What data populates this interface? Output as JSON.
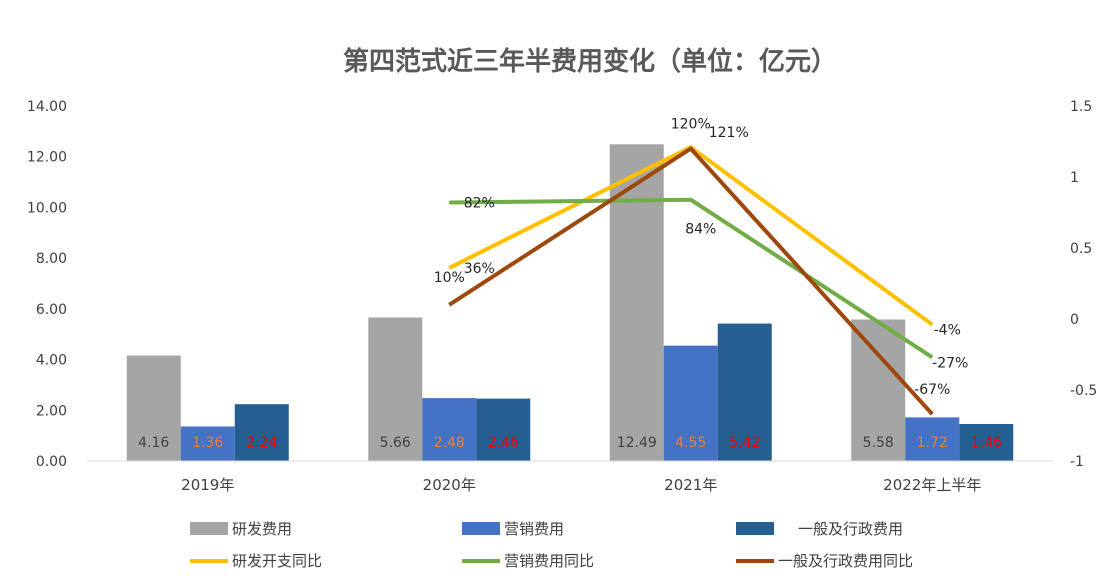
{
  "chart_data": {
    "type": "bar",
    "title": "第四范式近三年半费用变化（单位：亿元）",
    "categories": [
      "2019年",
      "2020年",
      "2021年",
      "2022年上半年"
    ],
    "ylim": [
      0,
      14
    ],
    "y_ticks": [
      "0.00",
      "2.00",
      "4.00",
      "6.00",
      "8.00",
      "10.00",
      "12.00",
      "14.00"
    ],
    "y2lim": [
      -1,
      1.5
    ],
    "y2_ticks": [
      "-1",
      "-0.5",
      "0",
      "0.5",
      "1",
      "1.5"
    ],
    "grid": false,
    "legend_position": "bottom",
    "bar_series": [
      {
        "name": "研发费用",
        "color": "#a5a5a5",
        "label_color": "#404040",
        "values": [
          4.16,
          5.66,
          12.49,
          5.58
        ],
        "labels": [
          "4.16",
          "5.66",
          "12.49",
          "5.58"
        ]
      },
      {
        "name": "营销费用",
        "color": "#4472c4",
        "label_color": "#ed7d31",
        "values": [
          1.36,
          2.48,
          4.55,
          1.72
        ],
        "labels": [
          "1.36",
          "2.48",
          "4.55",
          "1.72"
        ]
      },
      {
        "name": "一般及行政费用",
        "color": "#255e91",
        "label_color": "#ff0000",
        "values": [
          2.24,
          2.46,
          5.42,
          1.46
        ],
        "labels": [
          "2.24",
          "2.46",
          "5.42",
          "1.46"
        ]
      }
    ],
    "line_series": [
      {
        "name": "研发开支同比",
        "color": "#ffc000",
        "values": [
          null,
          0.36,
          1.21,
          -0.04
        ],
        "labels": [
          null,
          "36%",
          "121%",
          "-4%"
        ]
      },
      {
        "name": "营销费用同比",
        "color": "#70ad47",
        "values": [
          null,
          0.82,
          0.84,
          -0.27
        ],
        "labels": [
          null,
          "82%",
          "84%",
          "-27%"
        ]
      },
      {
        "name": "一般及行政费用同比",
        "color": "#9e480e",
        "values": [
          null,
          0.1,
          1.2,
          -0.67
        ],
        "labels": [
          null,
          "10%",
          "120%",
          "-67%"
        ]
      }
    ]
  }
}
